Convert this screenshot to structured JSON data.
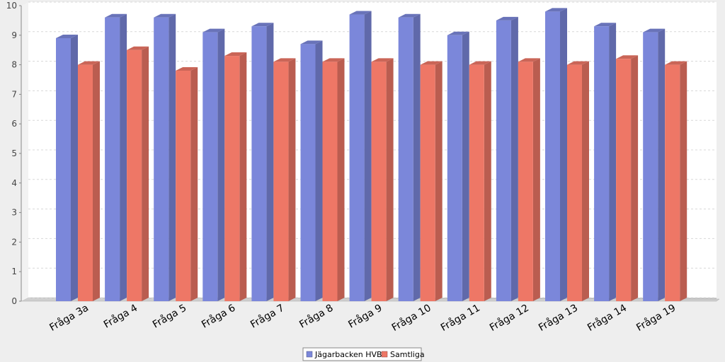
{
  "chart_data": {
    "type": "bar",
    "categories": [
      "Fråga 3a",
      "Fråga 4",
      "Fråga 5",
      "Fråga 6",
      "Fråga 7",
      "Fråga 8",
      "Fråga 9",
      "Fråga 10",
      "Fråga 11",
      "Fråga 12",
      "Fråga 13",
      "Fråga 14",
      "Fråga 19"
    ],
    "series": [
      {
        "name": "Jägarbacken HVB",
        "color": "#7b87da",
        "values": [
          8.9,
          9.6,
          9.6,
          9.1,
          9.3,
          8.7,
          9.7,
          9.6,
          9.0,
          9.5,
          9.8,
          9.3,
          9.1
        ]
      },
      {
        "name": "Samtliga",
        "color": "#ee7766",
        "values": [
          8.0,
          8.5,
          7.8,
          8.3,
          8.1,
          8.1,
          8.1,
          8.0,
          8.0,
          8.1,
          8.0,
          8.2,
          8.0
        ]
      }
    ],
    "title": "",
    "xlabel": "",
    "ylabel": "",
    "ylim": [
      0,
      10
    ],
    "yticks": [
      0,
      1,
      2,
      3,
      4,
      5,
      6,
      7,
      8,
      9,
      10
    ],
    "grid": true,
    "legend_position": "bottom-center",
    "style": "3d"
  }
}
